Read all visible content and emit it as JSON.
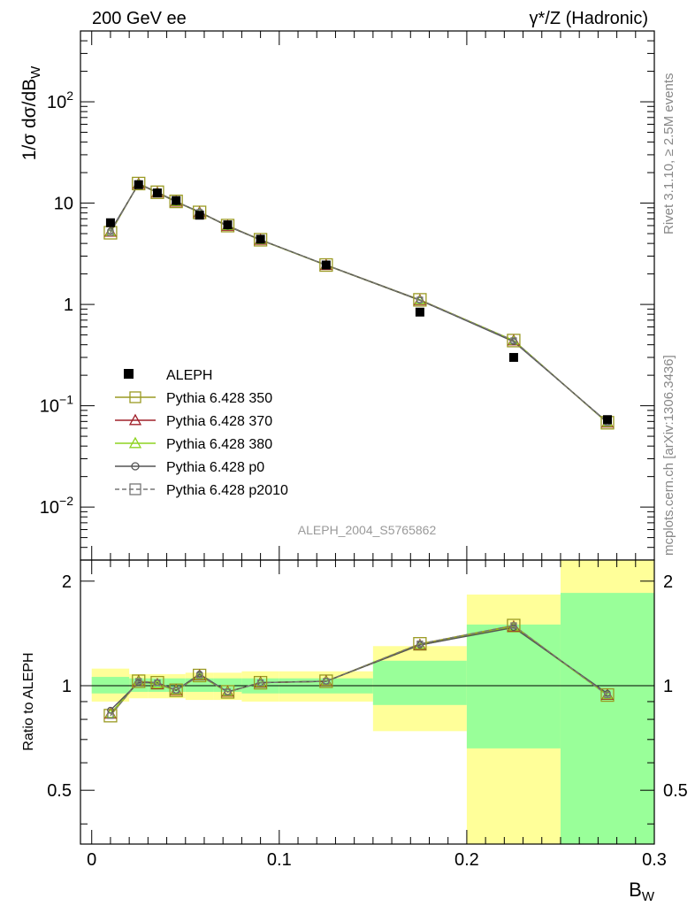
{
  "header": {
    "left": "200 GeV ee",
    "right": "γ*/Z (Hadronic)"
  },
  "side_labels": {
    "rivet": "Rivet 3.1.10, ≥ 2.5M events",
    "mcplots": "mcplots.cern.ch [arXiv:1306.3436]"
  },
  "watermark": "ALEPH_2004_S5765862",
  "chart_data": [
    {
      "type": "scatter",
      "title": "",
      "ylabel": "1/σ  dσ/dB_W",
      "y_scale": "log",
      "ylim": [
        0.003,
        500
      ],
      "xlim": [
        -0.006,
        0.3
      ],
      "yticks": [
        {
          "v": 0.01,
          "base": "10",
          "exp": "−2"
        },
        {
          "v": 0.1,
          "base": "10",
          "exp": "−1"
        },
        {
          "v": 1,
          "base": "1",
          "exp": ""
        },
        {
          "v": 10,
          "base": "10",
          "exp": ""
        },
        {
          "v": 100,
          "base": "10",
          "exp": "2"
        }
      ],
      "x": [
        0.01,
        0.025,
        0.035,
        0.045,
        0.0575,
        0.0725,
        0.09,
        0.125,
        0.175,
        0.225,
        0.275
      ],
      "data": {
        "name": "ALEPH",
        "values": [
          6.4,
          15.2,
          12.6,
          10.6,
          7.6,
          6.1,
          4.4,
          2.45,
          0.84,
          0.3,
          0.073
        ]
      },
      "series": [
        {
          "name": "Pythia 6.428 350",
          "color": "#9a9a22",
          "marker": "square",
          "dash": false,
          "values": [
            5.1,
            15.6,
            12.8,
            10.4,
            8.1,
            6.0,
            4.35,
            2.45,
            1.11,
            0.44,
            0.068
          ]
        },
        {
          "name": "Pythia 6.428 370",
          "color": "#a0202a",
          "marker": "triangle",
          "dash": false,
          "values": [
            5.2,
            15.5,
            12.7,
            10.3,
            8.1,
            5.95,
            4.33,
            2.44,
            1.1,
            0.44,
            0.068
          ]
        },
        {
          "name": "Pythia 6.428 380",
          "color": "#8ed320",
          "marker": "triangle",
          "dash": false,
          "values": [
            5.2,
            15.5,
            12.7,
            10.3,
            8.1,
            5.95,
            4.33,
            2.44,
            1.1,
            0.44,
            0.068
          ]
        },
        {
          "name": "Pythia 6.428 p0",
          "color": "#555555",
          "marker": "circle",
          "dash": false,
          "values": [
            5.3,
            15.4,
            12.8,
            10.3,
            8.2,
            5.9,
            4.35,
            2.45,
            1.1,
            0.43,
            0.069
          ]
        },
        {
          "name": "Pythia 6.428 p2010",
          "color": "#777777",
          "marker": "square",
          "dash": true,
          "values": [
            5.1,
            15.6,
            12.8,
            10.4,
            8.1,
            6.0,
            4.35,
            2.45,
            1.11,
            0.44,
            0.068
          ]
        }
      ]
    },
    {
      "type": "line",
      "ylabel": "Ratio to ALEPH",
      "xlabel": "B_W",
      "y_scale": "log",
      "ylim": [
        0.35,
        2.3
      ],
      "xlim": [
        -0.006,
        0.3
      ],
      "yticks": [
        0.5,
        1,
        2
      ],
      "xticks": [
        0,
        0.1,
        0.2,
        0.3
      ],
      "bins": [
        [
          0,
          0.02
        ],
        [
          0.02,
          0.03
        ],
        [
          0.03,
          0.04
        ],
        [
          0.04,
          0.05
        ],
        [
          0.05,
          0.065
        ],
        [
          0.065,
          0.08
        ],
        [
          0.08,
          0.1
        ],
        [
          0.1,
          0.15
        ],
        [
          0.15,
          0.2
        ],
        [
          0.2,
          0.25
        ],
        [
          0.25,
          0.3
        ]
      ],
      "band_inner": [
        [
          0.95,
          1.06
        ],
        [
          0.96,
          1.05
        ],
        [
          0.96,
          1.05
        ],
        [
          0.96,
          1.05
        ],
        [
          0.96,
          1.05
        ],
        [
          0.96,
          1.05
        ],
        [
          0.95,
          1.05
        ],
        [
          0.95,
          1.05
        ],
        [
          0.88,
          1.18
        ],
        [
          0.66,
          1.5
        ],
        [
          0.3,
          1.85
        ]
      ],
      "band_outer": [
        [
          0.9,
          1.12
        ],
        [
          0.92,
          1.08
        ],
        [
          0.92,
          1.08
        ],
        [
          0.92,
          1.08
        ],
        [
          0.91,
          1.09
        ],
        [
          0.91,
          1.09
        ],
        [
          0.9,
          1.1
        ],
        [
          0.9,
          1.1
        ],
        [
          0.74,
          1.3
        ],
        [
          0.3,
          1.83
        ],
        [
          0.3,
          2.5
        ]
      ],
      "series": [
        {
          "name": "Pythia 6.428 350",
          "values": [
            0.82,
            1.03,
            1.02,
            0.97,
            1.07,
            0.96,
            1.02,
            1.03,
            1.32,
            1.49,
            0.94
          ]
        },
        {
          "name": "Pythia 6.428 370",
          "values": [
            0.83,
            1.03,
            1.01,
            0.97,
            1.07,
            0.96,
            1.02,
            1.03,
            1.31,
            1.48,
            0.94
          ]
        },
        {
          "name": "Pythia 6.428 380",
          "values": [
            0.83,
            1.03,
            1.01,
            0.97,
            1.07,
            0.96,
            1.02,
            1.03,
            1.31,
            1.48,
            0.94
          ]
        },
        {
          "name": "Pythia 6.428 p0",
          "values": [
            0.85,
            1.02,
            1.02,
            0.97,
            1.08,
            0.96,
            1.02,
            1.03,
            1.31,
            1.47,
            0.95
          ]
        },
        {
          "name": "Pythia 6.428 p2010",
          "values": [
            0.82,
            1.03,
            1.02,
            0.97,
            1.07,
            0.96,
            1.02,
            1.03,
            1.32,
            1.49,
            0.94
          ]
        }
      ]
    }
  ]
}
